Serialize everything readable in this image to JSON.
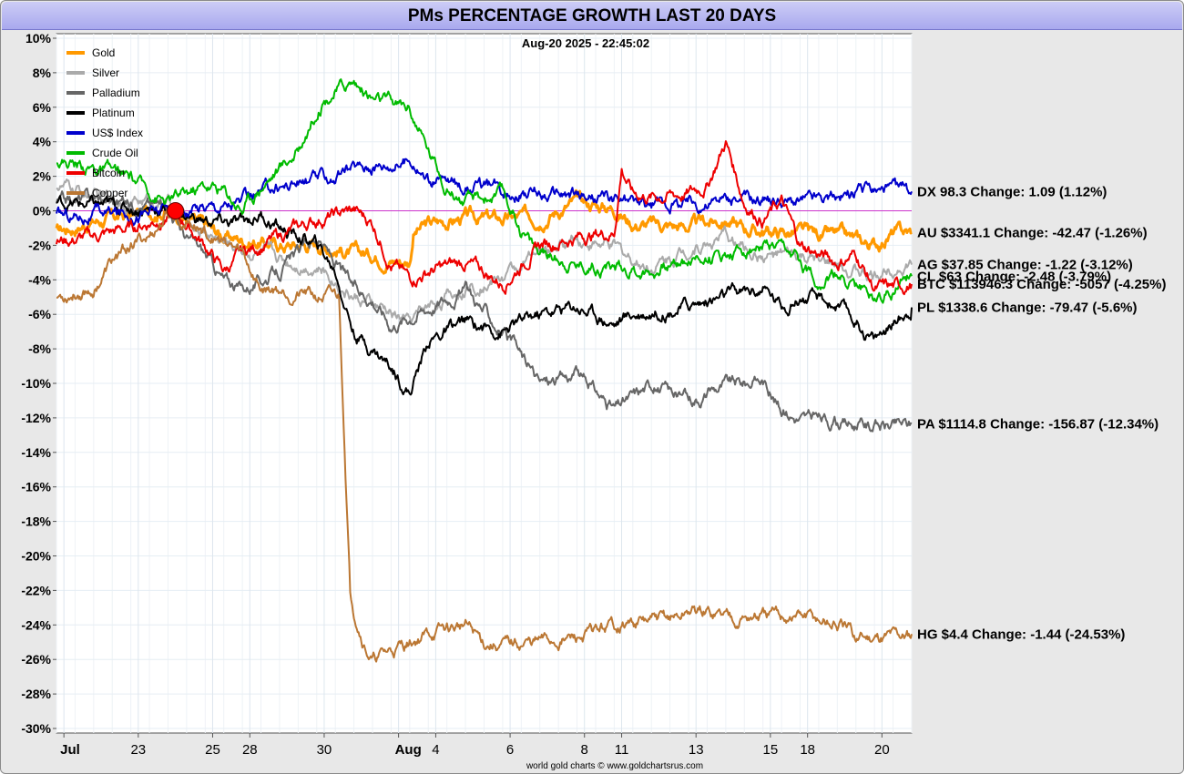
{
  "chart_data": {
    "type": "line",
    "title": "PMs PERCENTAGE GROWTH LAST 20 DAYS",
    "timestamp": "Aug-20  2025 - 22:45:02",
    "credit": "world gold charts © www.goldchartsrus.com",
    "ylabel": "",
    "xlabel": "",
    "ylim": [
      -30,
      10
    ],
    "y_ticks": [
      "10%",
      "8%",
      "6%",
      "4%",
      "2%",
      "0%",
      "-2%",
      "-4%",
      "-6%",
      "-8%",
      "-10%",
      "-12%",
      "-14%",
      "-16%",
      "-18%",
      "-20%",
      "-22%",
      "-24%",
      "-26%",
      "-28%",
      "-30%"
    ],
    "x_range": [
      0,
      23
    ],
    "x_ticks": [
      {
        "x": 0.2,
        "label": "Jul",
        "bold": true
      },
      {
        "x": 2.2,
        "label": "23"
      },
      {
        "x": 4.2,
        "label": "25"
      },
      {
        "x": 5.2,
        "label": "28"
      },
      {
        "x": 7.2,
        "label": "30"
      },
      {
        "x": 9.2,
        "label": "Aug",
        "bold": true
      },
      {
        "x": 10.2,
        "label": "4"
      },
      {
        "x": 12.2,
        "label": "6"
      },
      {
        "x": 14.2,
        "label": "8"
      },
      {
        "x": 15.2,
        "label": "11"
      },
      {
        "x": 17.2,
        "label": "13"
      },
      {
        "x": 19.2,
        "label": "15"
      },
      {
        "x": 20.2,
        "label": "18"
      },
      {
        "x": 22.2,
        "label": "20"
      }
    ],
    "grid": true,
    "legend_position": "top-left",
    "baseline_marker": {
      "x": 3.2,
      "y": 0
    },
    "series": [
      {
        "name": "Gold",
        "color": "#ff9900",
        "width": 3,
        "points": [
          [
            0,
            -1.2
          ],
          [
            1,
            -0.6
          ],
          [
            2,
            -0.3
          ],
          [
            3,
            0.2
          ],
          [
            3.5,
            -0.4
          ],
          [
            4.5,
            -1.5
          ],
          [
            5.5,
            -1.8
          ],
          [
            6,
            -2
          ],
          [
            7,
            -1.9
          ],
          [
            7.6,
            -2.2
          ],
          [
            8,
            -2.5
          ],
          [
            8.5,
            -2.5
          ],
          [
            9,
            -2.8
          ],
          [
            9.5,
            -2.9
          ],
          [
            9.6,
            -1.2
          ],
          [
            10,
            -0.8
          ],
          [
            11,
            -0.4
          ],
          [
            12,
            -0.5
          ],
          [
            13,
            -0.3
          ],
          [
            14,
            0.5
          ],
          [
            15,
            0.2
          ],
          [
            15.5,
            -0.7
          ],
          [
            16,
            -0.8
          ],
          [
            17,
            -0.9
          ],
          [
            18,
            -0.5
          ],
          [
            18.5,
            -1
          ],
          [
            19,
            -1.2
          ],
          [
            20,
            -1.3
          ],
          [
            21,
            -1.5
          ],
          [
            22,
            -2
          ],
          [
            22.5,
            -1.3
          ],
          [
            23,
            -1.26
          ]
        ],
        "end_label": "AU $3341.1  Change: -42.47 (-1.26%)"
      },
      {
        "name": "Silver",
        "color": "#aaaaaa",
        "width": 2,
        "points": [
          [
            0,
            1.5
          ],
          [
            1,
            0.8
          ],
          [
            2,
            0.6
          ],
          [
            3,
            0.5
          ],
          [
            3.5,
            -0.6
          ],
          [
            4.5,
            -1.8
          ],
          [
            5.5,
            -2.5
          ],
          [
            6,
            -2.8
          ],
          [
            7,
            -3.2
          ],
          [
            7.5,
            -4
          ],
          [
            8,
            -5
          ],
          [
            8.5,
            -5.5
          ],
          [
            9,
            -6
          ],
          [
            9.5,
            -6.5
          ],
          [
            10,
            -5.5
          ],
          [
            11,
            -4.5
          ],
          [
            12,
            -3.8
          ],
          [
            13,
            -2.5
          ],
          [
            14,
            -1.6
          ],
          [
            15,
            -2.2
          ],
          [
            15.5,
            -2.8
          ],
          [
            16,
            -3.2
          ],
          [
            17,
            -2.2
          ],
          [
            18,
            -1.5
          ],
          [
            18.5,
            -2.2
          ],
          [
            19,
            -2.6
          ],
          [
            20,
            -2.8
          ],
          [
            21,
            -3.3
          ],
          [
            22,
            -3.8
          ],
          [
            22.5,
            -3.1
          ],
          [
            23,
            -3.12
          ]
        ],
        "end_label": "AG $37.85  Change: -1.22 (-3.12%)"
      },
      {
        "name": "Palladium",
        "color": "#666666",
        "width": 2,
        "points": [
          [
            0,
            0.5
          ],
          [
            1,
            0.8
          ],
          [
            2,
            0.5
          ],
          [
            3,
            0.3
          ],
          [
            3.5,
            -1.5
          ],
          [
            4,
            -2.5
          ],
          [
            4.5,
            -4
          ],
          [
            5,
            -4.5
          ],
          [
            6,
            -3.5
          ],
          [
            7,
            -1.5
          ],
          [
            7.5,
            -3
          ],
          [
            8,
            -4.5
          ],
          [
            8.5,
            -5
          ],
          [
            9,
            -6.5
          ],
          [
            10,
            -5.5
          ],
          [
            11,
            -4.5
          ],
          [
            12,
            -7
          ],
          [
            13,
            -10
          ],
          [
            14,
            -9.5
          ],
          [
            15,
            -11.5
          ],
          [
            16,
            -10
          ],
          [
            17,
            -11
          ],
          [
            18,
            -10
          ],
          [
            19,
            -9.8
          ],
          [
            19.5,
            -11.5
          ],
          [
            20,
            -12
          ],
          [
            21,
            -12.2
          ],
          [
            22,
            -12.5
          ],
          [
            22.5,
            -12.4
          ],
          [
            23,
            -12.34
          ]
        ],
        "end_label": "PA $1114.8  Change: -156.87 (-12.34%)"
      },
      {
        "name": "Platinum",
        "color": "#000000",
        "width": 2,
        "points": [
          [
            0,
            0.5
          ],
          [
            1,
            0.3
          ],
          [
            2,
            0.2
          ],
          [
            3,
            0.1
          ],
          [
            4,
            -0.6
          ],
          [
            5,
            -0.8
          ],
          [
            5.5,
            -0.2
          ],
          [
            6,
            -1
          ],
          [
            7,
            -2
          ],
          [
            7.5,
            -3.5
          ],
          [
            8,
            -7
          ],
          [
            8.5,
            -8
          ],
          [
            9,
            -9
          ],
          [
            9.5,
            -10.5
          ],
          [
            10,
            -7.5
          ],
          [
            11,
            -6.5
          ],
          [
            12,
            -7
          ],
          [
            13,
            -6
          ],
          [
            14,
            -5.5
          ],
          [
            15,
            -6.5
          ],
          [
            15.5,
            -6
          ],
          [
            16,
            -5.8
          ],
          [
            17,
            -5.5
          ],
          [
            18,
            -5
          ],
          [
            19,
            -4.5
          ],
          [
            19.5,
            -5.5
          ],
          [
            20,
            -5
          ],
          [
            21,
            -5.5
          ],
          [
            22,
            -7.5
          ],
          [
            22.5,
            -6.5
          ],
          [
            23,
            -5.6
          ]
        ],
        "end_label": "PL $1338.6  Change: -79.47 (-5.6%)"
      },
      {
        "name": "US$ Index",
        "color": "#0000cc",
        "width": 2,
        "points": [
          [
            0,
            -0.3
          ],
          [
            1,
            -0.2
          ],
          [
            2,
            -0.1
          ],
          [
            3,
            0
          ],
          [
            4,
            0.3
          ],
          [
            5,
            0.5
          ],
          [
            6,
            1.5
          ],
          [
            7,
            1.8
          ],
          [
            7.5,
            2
          ],
          [
            8,
            2.5
          ],
          [
            9,
            2.8
          ],
          [
            9.6,
            3
          ],
          [
            10,
            1.8
          ],
          [
            11,
            1.5
          ],
          [
            12,
            1.2
          ],
          [
            13,
            1
          ],
          [
            14,
            0.8
          ],
          [
            15,
            0.7
          ],
          [
            16,
            0.3
          ],
          [
            17,
            0.5
          ],
          [
            18,
            0.6
          ],
          [
            19,
            0.7
          ],
          [
            20,
            0.6
          ],
          [
            21,
            0.8
          ],
          [
            22,
            1.2
          ],
          [
            23,
            1.12
          ]
        ],
        "end_label": "DX 98.3  Change: 1.09 (1.12%)"
      },
      {
        "name": "Crude Oil",
        "color": "#00bb00",
        "width": 2,
        "points": [
          [
            0,
            3
          ],
          [
            1,
            2.5
          ],
          [
            2,
            1.8
          ],
          [
            3,
            0.5
          ],
          [
            3.5,
            1
          ],
          [
            4,
            1.5
          ],
          [
            4.5,
            1.2
          ],
          [
            5,
            0.2
          ],
          [
            5.5,
            1.5
          ],
          [
            6,
            2.5
          ],
          [
            6.5,
            3.5
          ],
          [
            7,
            6
          ],
          [
            7.5,
            7
          ],
          [
            8,
            7.5
          ],
          [
            8.5,
            6.5
          ],
          [
            9,
            6.2
          ],
          [
            9.5,
            6
          ],
          [
            10,
            3.5
          ],
          [
            10.5,
            1.5
          ],
          [
            11,
            0.5
          ],
          [
            12,
            1
          ],
          [
            12.5,
            -1
          ],
          [
            13,
            -2.5
          ],
          [
            14,
            -3
          ],
          [
            15,
            -3.2
          ],
          [
            16,
            -3.5
          ],
          [
            17,
            -2.8
          ],
          [
            18,
            -2.5
          ],
          [
            19,
            -2
          ],
          [
            20,
            -3
          ],
          [
            20.5,
            -4
          ],
          [
            21,
            -3.8
          ],
          [
            22,
            -5
          ],
          [
            22.5,
            -4.5
          ],
          [
            23,
            -3.79
          ]
        ],
        "end_label": "CL $63  Change: -2.48 (-3.79%)"
      },
      {
        "name": "Bitcoin",
        "color": "#ee0000",
        "width": 2,
        "points": [
          [
            0,
            -1.8
          ],
          [
            1,
            -1.5
          ],
          [
            2,
            -1
          ],
          [
            3,
            -0.3
          ],
          [
            3.5,
            -0.8
          ],
          [
            4,
            -2
          ],
          [
            4.5,
            -3.5
          ],
          [
            5,
            -2.5
          ],
          [
            6,
            -1.5
          ],
          [
            7,
            -0.5
          ],
          [
            8,
            0
          ],
          [
            8.5,
            -0.7
          ],
          [
            9,
            -3
          ],
          [
            9.5,
            -4
          ],
          [
            10,
            -3.5
          ],
          [
            11,
            -3
          ],
          [
            12,
            -4.2
          ],
          [
            13,
            -2
          ],
          [
            14,
            -1.5
          ],
          [
            15,
            -1.2
          ],
          [
            15.2,
            2.5
          ],
          [
            15.5,
            1
          ],
          [
            16,
            0.8
          ],
          [
            17,
            1
          ],
          [
            17.5,
            1.5
          ],
          [
            18,
            4
          ],
          [
            18.5,
            0.5
          ],
          [
            19,
            -0.5
          ],
          [
            19.5,
            0.5
          ],
          [
            20,
            -2
          ],
          [
            21,
            -3
          ],
          [
            21.5,
            -2.5
          ],
          [
            22,
            -4.5
          ],
          [
            22.5,
            -4.5
          ],
          [
            23,
            -4.25
          ]
        ],
        "end_label": "BTC $113946.3  Change: -5057 (-4.25%)"
      },
      {
        "name": "Copper",
        "color": "#bb7733",
        "width": 2,
        "points": [
          [
            0,
            -5
          ],
          [
            1,
            -4.5
          ],
          [
            1.5,
            -3
          ],
          [
            2,
            -2
          ],
          [
            2.5,
            -1.5
          ],
          [
            3,
            -0.3
          ],
          [
            3.5,
            -0.5
          ],
          [
            4,
            -1.2
          ],
          [
            5,
            -2.5
          ],
          [
            5.5,
            -4.5
          ],
          [
            6,
            -4.5
          ],
          [
            7,
            -5
          ],
          [
            7.6,
            -5
          ],
          [
            7.9,
            -22
          ],
          [
            8,
            -23
          ],
          [
            8.3,
            -25
          ],
          [
            8.5,
            -26
          ],
          [
            9,
            -25.5
          ],
          [
            10,
            -24.5
          ],
          [
            11,
            -24
          ],
          [
            11.5,
            -25
          ],
          [
            12,
            -25.2
          ],
          [
            13,
            -25
          ],
          [
            14,
            -24.8
          ],
          [
            15,
            -24
          ],
          [
            16,
            -23.8
          ],
          [
            16.8,
            -23.5
          ],
          [
            17,
            -23.2
          ],
          [
            18,
            -23.4
          ],
          [
            19,
            -23.6
          ],
          [
            20,
            -23.5
          ],
          [
            21,
            -24
          ],
          [
            21.5,
            -24.8
          ],
          [
            22,
            -24.6
          ],
          [
            23,
            -24.53
          ]
        ],
        "end_label": "HG $4.4  Change: -1.44 (-24.53%)"
      }
    ]
  }
}
